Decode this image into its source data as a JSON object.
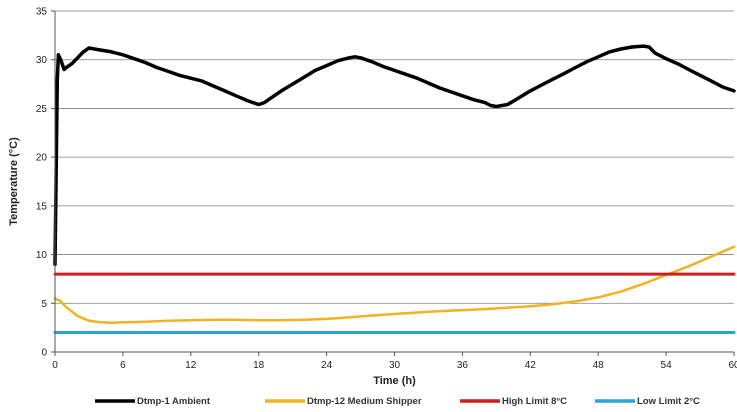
{
  "chart_data": {
    "type": "line",
    "title": "",
    "xlabel": "Time (h)",
    "ylabel": "Temperature (°C)",
    "xlim": [
      0,
      60
    ],
    "ylim": [
      0,
      35
    ],
    "xticks": [
      0,
      6,
      12,
      18,
      24,
      30,
      36,
      42,
      48,
      54,
      60
    ],
    "yticks": [
      0,
      5,
      10,
      15,
      20,
      25,
      30,
      35
    ],
    "grid": "horizontal",
    "legend_position": "bottom",
    "series": [
      {
        "name": "Dtmp-1 Ambient",
        "color": "#000000",
        "x": [
          0,
          0.1,
          0.2,
          0.3,
          0.5,
          0.8,
          1,
          1.5,
          2,
          2.5,
          3,
          3.5,
          4,
          5,
          6,
          7,
          8,
          9,
          10,
          11,
          12,
          13,
          14,
          15,
          16,
          17,
          17.5,
          18,
          18.5,
          19,
          20,
          21,
          22,
          23,
          24,
          25,
          26,
          26.5,
          27,
          28,
          29,
          30,
          31,
          32,
          33,
          34,
          35,
          36,
          37,
          38,
          38.5,
          39,
          40,
          41,
          42,
          43,
          44,
          45,
          46,
          47,
          48,
          49,
          50,
          51,
          52,
          52.5,
          53,
          54,
          55,
          56,
          57,
          58,
          59,
          60
        ],
        "y": [
          9,
          18,
          28,
          30.5,
          30,
          29,
          29.2,
          29.6,
          30.2,
          30.8,
          31.2,
          31.1,
          31,
          30.8,
          30.5,
          30.1,
          29.7,
          29.2,
          28.8,
          28.4,
          28.1,
          27.8,
          27.3,
          26.8,
          26.3,
          25.8,
          25.6,
          25.4,
          25.6,
          26,
          26.8,
          27.5,
          28.2,
          28.9,
          29.4,
          29.9,
          30.2,
          30.3,
          30.2,
          29.8,
          29.3,
          28.9,
          28.5,
          28.1,
          27.6,
          27.1,
          26.7,
          26.3,
          25.9,
          25.6,
          25.3,
          25.2,
          25.4,
          26.1,
          26.8,
          27.4,
          28,
          28.6,
          29.2,
          29.8,
          30.3,
          30.8,
          31.1,
          31.3,
          31.4,
          31.3,
          30.7,
          30.1,
          29.6,
          29,
          28.4,
          27.8,
          27.2,
          26.8
        ]
      },
      {
        "name": "Dtmp-12 Medium Shipper",
        "color": "#f0b323",
        "x": [
          0,
          0.5,
          1,
          2,
          3,
          4,
          5,
          6,
          8,
          10,
          12,
          14,
          16,
          18,
          20,
          22,
          24,
          26,
          28,
          30,
          32,
          34,
          36,
          38,
          40,
          42,
          44,
          46,
          48,
          50,
          52,
          54,
          56,
          58,
          60
        ],
        "y": [
          5.5,
          5.2,
          4.6,
          3.7,
          3.2,
          3.05,
          3.0,
          3.05,
          3.1,
          3.2,
          3.25,
          3.3,
          3.3,
          3.25,
          3.25,
          3.3,
          3.4,
          3.55,
          3.75,
          3.9,
          4.05,
          4.2,
          4.3,
          4.4,
          4.55,
          4.7,
          4.9,
          5.2,
          5.6,
          6.2,
          7.0,
          7.9,
          8.8,
          9.8,
          10.8
        ]
      },
      {
        "name": "High Limit 8°C",
        "color": "#cc1f1f",
        "x": [
          0,
          60
        ],
        "y": [
          8,
          8
        ]
      },
      {
        "name": "Low Limit 2°C",
        "color": "#2aa6d6",
        "x": [
          0,
          60
        ],
        "y": [
          2,
          2
        ]
      }
    ]
  }
}
